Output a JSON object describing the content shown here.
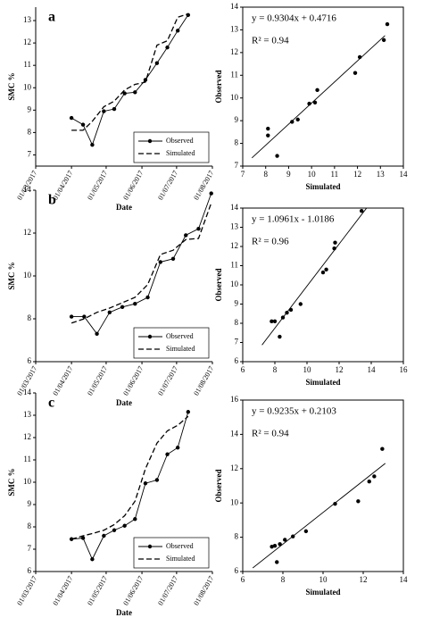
{
  "chart_data": [
    {
      "type": "line",
      "panel_label": "a",
      "xlabel": "Date",
      "ylabel": "SMC %",
      "legend": "lower right",
      "x": [
        "2017-04-01",
        "2017-04-11",
        "2017-04-19",
        "2017-04-29",
        "2017-05-08",
        "2017-05-17",
        "2017-05-26",
        "2017-06-04",
        "2017-06-14",
        "2017-06-23",
        "2017-07-02",
        "2017-07-11"
      ],
      "series": [
        {
          "name": "Observed",
          "color": "#000000",
          "dash": false,
          "marker": true,
          "values": [
            8.65,
            8.35,
            7.45,
            8.95,
            9.05,
            9.75,
            9.8,
            10.35,
            11.1,
            11.8,
            12.55,
            13.25
          ]
        },
        {
          "name": "Simulated",
          "color": "#000000",
          "dash": true,
          "marker": false,
          "values": [
            8.1,
            8.1,
            8.5,
            9.15,
            9.4,
            9.9,
            10.15,
            10.25,
            11.9,
            12.1,
            13.15,
            13.3
          ]
        }
      ],
      "xlim": [
        "2017-03-01",
        "2017-08-01"
      ],
      "xticks": [
        {
          "value": "2017-03-01",
          "label": "01/03/2017"
        },
        {
          "value": "2017-04-01",
          "label": "01/04/2017"
        },
        {
          "value": "2017-05-01",
          "label": "01/05/2017"
        },
        {
          "value": "2017-06-01",
          "label": "01/06/2017"
        },
        {
          "value": "2017-07-01",
          "label": "01/07/2017"
        },
        {
          "value": "2017-08-01",
          "label": "01/08/2017"
        }
      ],
      "ylim": [
        6.5,
        13.6
      ],
      "yticks": [
        7,
        8,
        9,
        10,
        11,
        12,
        13
      ]
    },
    {
      "type": "scatter",
      "xlabel": "Simulated",
      "ylabel": "Observed",
      "equation": "y = 0.9304x + 0.4716",
      "r2": "R² = 0.94",
      "color": "#000000",
      "x": [
        8.1,
        8.1,
        8.5,
        9.15,
        9.4,
        9.9,
        10.15,
        10.25,
        11.9,
        12.1,
        13.15,
        13.3
      ],
      "y": [
        8.65,
        8.35,
        7.45,
        8.95,
        9.05,
        9.75,
        9.8,
        10.35,
        11.1,
        11.8,
        12.55,
        13.25
      ],
      "fit_line": {
        "x": [
          7.4,
          13.2
        ],
        "y": [
          7.36,
          12.75
        ]
      },
      "xlim": [
        7,
        14
      ],
      "xticks": [
        7,
        8,
        9,
        10,
        11,
        12,
        13,
        14
      ],
      "ylim": [
        7,
        14
      ],
      "yticks": [
        7,
        8,
        9,
        10,
        11,
        12,
        13,
        14
      ]
    },
    {
      "type": "line",
      "panel_label": "b",
      "xlabel": "Date",
      "ylabel": "SMC %",
      "legend": "lower right",
      "x": [
        "2017-04-01",
        "2017-04-12",
        "2017-04-23",
        "2017-05-04",
        "2017-05-15",
        "2017-05-26",
        "2017-06-06",
        "2017-06-17",
        "2017-06-28",
        "2017-07-09",
        "2017-07-20",
        "2017-07-31"
      ],
      "series": [
        {
          "name": "Observed",
          "color": "#000000",
          "dash": false,
          "marker": true,
          "values": [
            8.1,
            8.1,
            7.3,
            8.3,
            8.55,
            8.7,
            9.0,
            10.65,
            10.8,
            11.9,
            12.2,
            13.85
          ]
        },
        {
          "name": "Simulated",
          "color": "#000000",
          "dash": true,
          "marker": false,
          "values": [
            7.8,
            8.0,
            8.3,
            8.5,
            8.75,
            9.0,
            9.6,
            11.0,
            11.2,
            11.7,
            11.75,
            13.4
          ]
        }
      ],
      "xlim": [
        "2017-03-01",
        "2017-08-01"
      ],
      "xticks": [
        {
          "value": "2017-03-01",
          "label": "01/03/2017"
        },
        {
          "value": "2017-04-01",
          "label": "01/04/2017"
        },
        {
          "value": "2017-05-01",
          "label": "01/05/2017"
        },
        {
          "value": "2017-06-01",
          "label": "01/06/2017"
        },
        {
          "value": "2017-07-01",
          "label": "01/07/2017"
        },
        {
          "value": "2017-08-01",
          "label": "01/08/2017"
        }
      ],
      "ylim": [
        6,
        14
      ],
      "yticks": [
        6,
        8,
        10,
        12,
        14
      ]
    },
    {
      "type": "scatter",
      "xlabel": "Simulated",
      "ylabel": "Observed",
      "equation": "y = 1.0961x - 1.0186",
      "r2": "R² = 0.96",
      "color": "#000000",
      "x": [
        7.8,
        8.0,
        8.3,
        8.5,
        8.75,
        9.0,
        9.6,
        11.0,
        11.2,
        11.7,
        11.75,
        13.4
      ],
      "y": [
        8.1,
        8.1,
        7.3,
        8.3,
        8.55,
        8.7,
        9.0,
        10.65,
        10.8,
        11.9,
        12.2,
        13.85
      ],
      "fit_line": {
        "x": [
          7.2,
          13.7
        ],
        "y": [
          6.87,
          13.99
        ]
      },
      "xlim": [
        6,
        16
      ],
      "xticks": [
        6,
        8,
        10,
        12,
        14,
        16
      ],
      "ylim": [
        6,
        14
      ],
      "yticks": [
        6,
        7,
        8,
        9,
        10,
        11,
        12,
        13,
        14
      ]
    },
    {
      "type": "line",
      "panel_label": "c",
      "xlabel": "Date",
      "ylabel": "SMC %",
      "legend": "lower right",
      "x": [
        "2017-04-01",
        "2017-04-11",
        "2017-04-19",
        "2017-04-29",
        "2017-05-08",
        "2017-05-17",
        "2017-05-26",
        "2017-06-04",
        "2017-06-14",
        "2017-06-23",
        "2017-07-02",
        "2017-07-11"
      ],
      "series": [
        {
          "name": "Observed",
          "color": "#000000",
          "dash": false,
          "marker": true,
          "values": [
            7.45,
            7.5,
            6.55,
            7.6,
            7.85,
            8.05,
            8.35,
            9.95,
            10.1,
            11.25,
            11.55,
            13.15
          ]
        },
        {
          "name": "Simulated",
          "color": "#000000",
          "dash": true,
          "marker": false,
          "values": [
            7.45,
            7.6,
            7.7,
            7.85,
            8.1,
            8.5,
            9.15,
            10.6,
            11.75,
            12.3,
            12.55,
            12.95
          ]
        }
      ],
      "xlim": [
        "2017-03-01",
        "2017-08-01"
      ],
      "xticks": [
        {
          "value": "2017-03-01",
          "label": "01/03/2017"
        },
        {
          "value": "2017-04-01",
          "label": "01/04/2017"
        },
        {
          "value": "2017-05-01",
          "label": "01/05/2017"
        },
        {
          "value": "2017-06-01",
          "label": "01/06/2017"
        },
        {
          "value": "2017-07-01",
          "label": "01/07/2017"
        },
        {
          "value": "2017-08-01",
          "label": "01/08/2017"
        }
      ],
      "ylim": [
        6,
        14
      ],
      "yticks": [
        6,
        7,
        8,
        9,
        10,
        11,
        12,
        13,
        14
      ]
    },
    {
      "type": "scatter",
      "xlabel": "Simulated",
      "ylabel": "Observed",
      "equation": "y = 0.9235x + 0.2103",
      "r2": "R² = 0.94",
      "color": "#000000",
      "x": [
        7.45,
        7.6,
        7.7,
        7.85,
        8.1,
        8.5,
        9.15,
        10.6,
        11.75,
        12.3,
        12.55,
        12.95
      ],
      "y": [
        7.45,
        7.5,
        6.55,
        7.6,
        7.85,
        8.05,
        8.35,
        9.95,
        10.1,
        11.25,
        11.55,
        13.15
      ],
      "fit_line": {
        "x": [
          6.5,
          13.1
        ],
        "y": [
          6.21,
          12.31
        ]
      },
      "xlim": [
        6,
        14
      ],
      "xticks": [
        6,
        8,
        10,
        12,
        14
      ],
      "ylim": [
        6,
        16
      ],
      "yticks": [
        6,
        8,
        10,
        12,
        14,
        16
      ]
    }
  ]
}
